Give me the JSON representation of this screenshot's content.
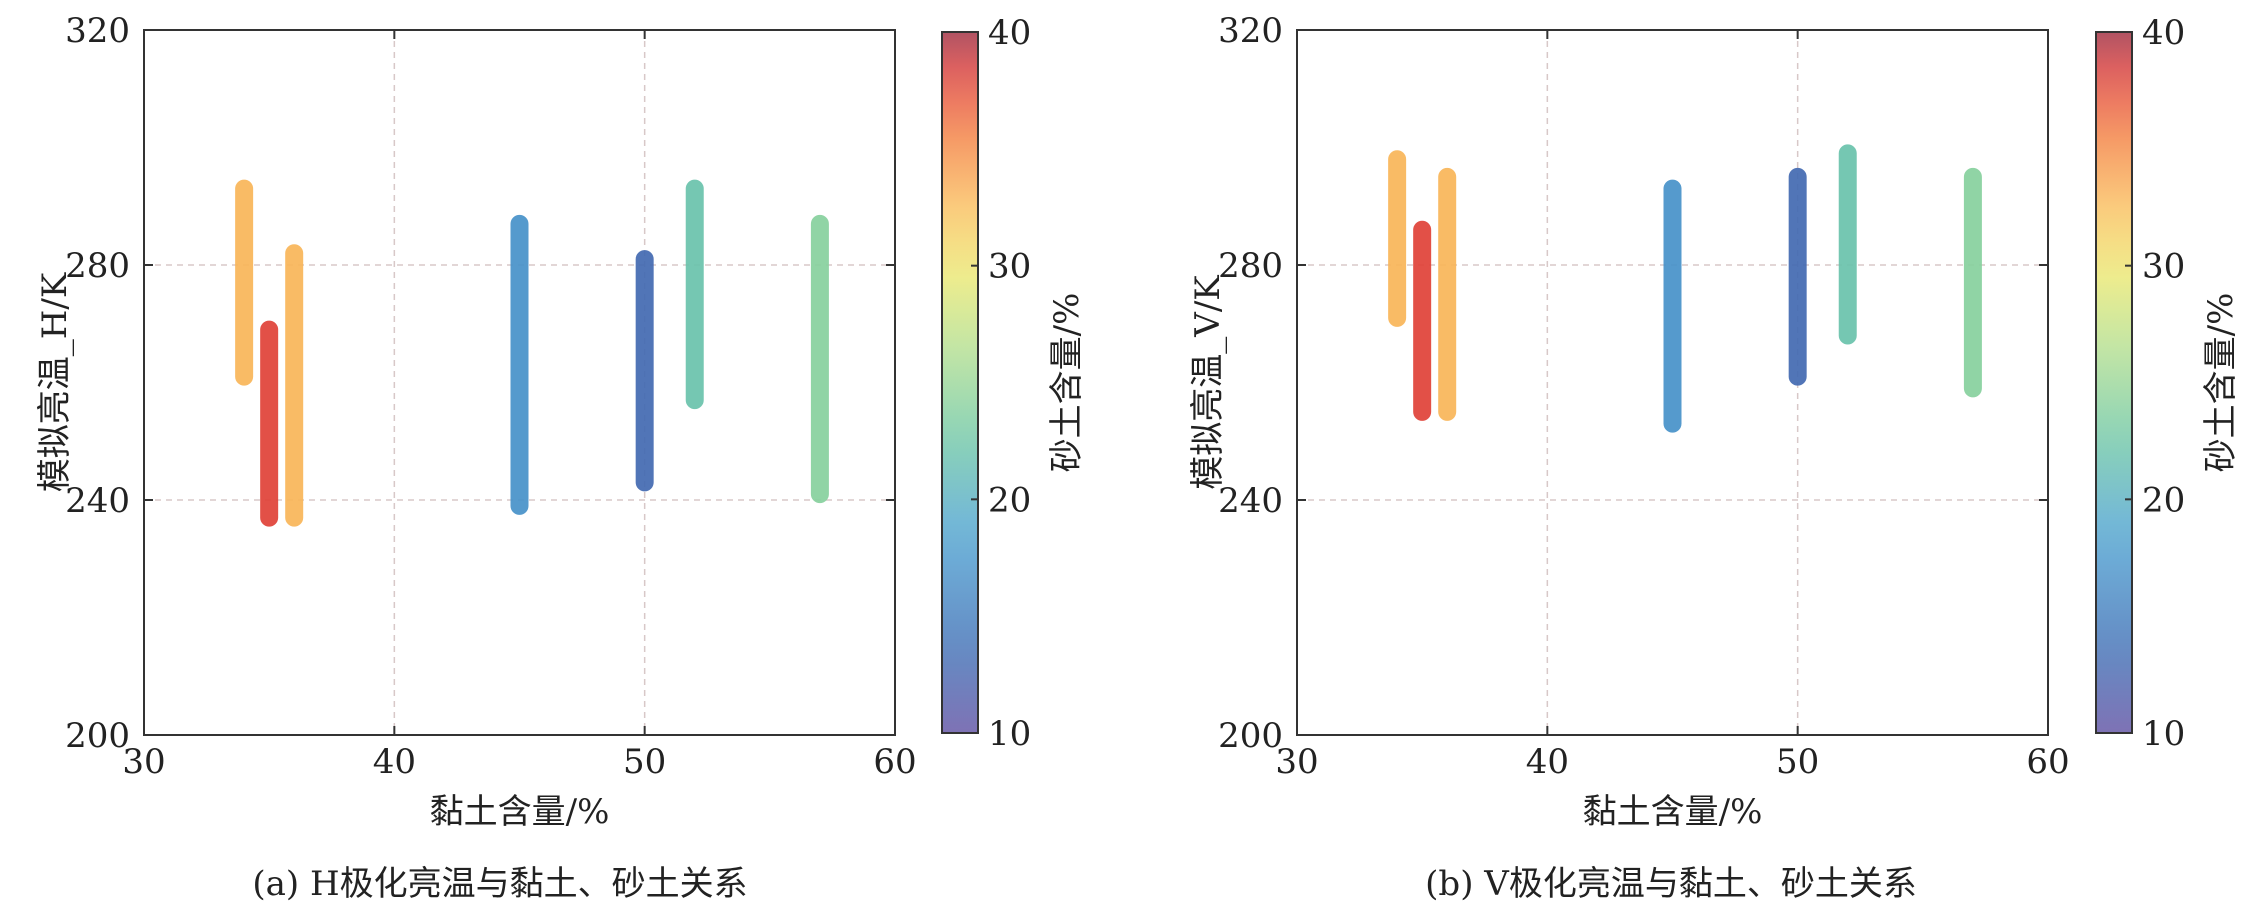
{
  "chart_data": [
    {
      "type": "scatter",
      "caption": "(a) H极化亮温与黏土、砂土关系",
      "xlabel": "黏土含量/%",
      "ylabel": "模拟亮温_H/K",
      "xlim": [
        30,
        60
      ],
      "ylim": [
        200,
        320
      ],
      "xticks": [
        30,
        40,
        50,
        60
      ],
      "yticks": [
        200,
        240,
        280,
        320
      ],
      "grid": true,
      "colorbar": {
        "label": "砂土含量/%",
        "range": [
          10,
          40
        ],
        "ticks": [
          10,
          20,
          30,
          40
        ]
      },
      "series": [
        {
          "x": 34,
          "y_min": 261,
          "y_max": 293,
          "sand": 33
        },
        {
          "x": 35,
          "y_min": 237,
          "y_max": 269,
          "sand": 38
        },
        {
          "x": 36,
          "y_min": 237,
          "y_max": 282,
          "sand": 33
        },
        {
          "x": 45,
          "y_min": 239,
          "y_max": 287,
          "sand": 17
        },
        {
          "x": 50,
          "y_min": 243,
          "y_max": 281,
          "sand": 13
        },
        {
          "x": 52,
          "y_min": 257,
          "y_max": 293,
          "sand": 22
        },
        {
          "x": 57,
          "y_min": 241,
          "y_max": 287,
          "sand": 24
        }
      ]
    },
    {
      "type": "scatter",
      "caption": "(b) V极化亮温与黏土、砂土关系",
      "xlabel": "黏土含量/%",
      "ylabel": "模拟亮温_V/K",
      "xlim": [
        30,
        60
      ],
      "ylim": [
        200,
        320
      ],
      "xticks": [
        30,
        40,
        50,
        60
      ],
      "yticks": [
        200,
        240,
        280,
        320
      ],
      "grid": true,
      "colorbar": {
        "label": "砂土含量/%",
        "range": [
          10,
          40
        ],
        "ticks": [
          10,
          20,
          30,
          40
        ]
      },
      "series": [
        {
          "x": 34,
          "y_min": 271,
          "y_max": 298,
          "sand": 33
        },
        {
          "x": 35,
          "y_min": 255,
          "y_max": 286,
          "sand": 38
        },
        {
          "x": 36,
          "y_min": 255,
          "y_max": 295,
          "sand": 33
        },
        {
          "x": 45,
          "y_min": 253,
          "y_max": 293,
          "sand": 17
        },
        {
          "x": 50,
          "y_min": 261,
          "y_max": 295,
          "sand": 13
        },
        {
          "x": 52,
          "y_min": 268,
          "y_max": 299,
          "sand": 22
        },
        {
          "x": 57,
          "y_min": 259,
          "y_max": 295,
          "sand": 24
        }
      ]
    }
  ]
}
